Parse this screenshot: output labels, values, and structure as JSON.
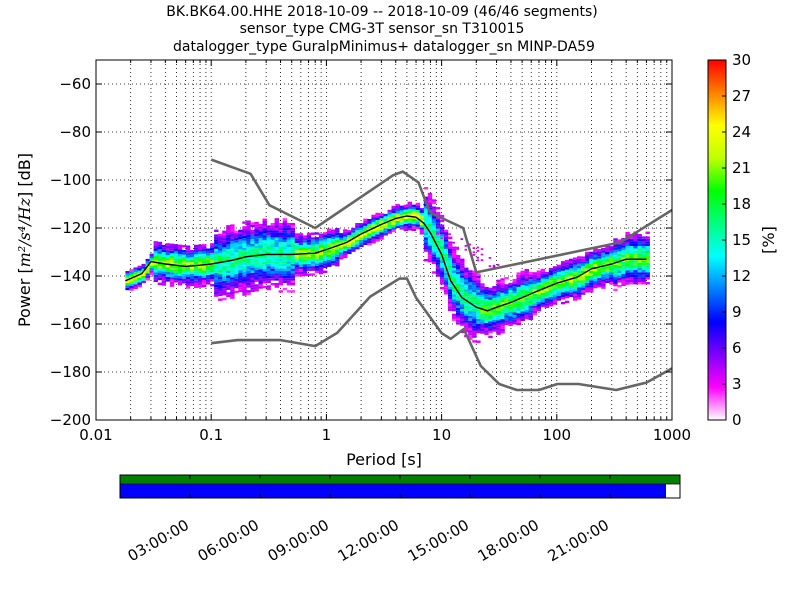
{
  "chart_data": {
    "type": "heatmap",
    "title_lines": [
      "BK.BK64.00.HHE   2018-10-09 -- 2018-10-09  (46/46 segments)",
      "sensor_type CMG-3T sensor_sn T310015",
      "datalogger_type GuralpMinimus+ datalogger_sn MINP-DA59"
    ],
    "xlabel": "Period [s]",
    "ylabel_prefix": "Power [",
    "ylabel_unit": "m²/s⁴/Hz",
    "ylabel_suffix": "] [dB]",
    "x_scale": "log",
    "xlim": [
      0.01,
      1000
    ],
    "ylim": [
      -200,
      -50
    ],
    "x_tick_labels": [
      "0.01",
      "0.1",
      "1",
      "10",
      "100",
      "1000"
    ],
    "x_tick_values": [
      0.01,
      0.1,
      1,
      10,
      100,
      1000
    ],
    "y_tick_values": [
      -60,
      -80,
      -100,
      -120,
      -140,
      -160,
      -180,
      -200
    ],
    "y_tick_labels": [
      "−60",
      "−80",
      "−100",
      "−120",
      "−140",
      "−160",
      "−180",
      "−200"
    ],
    "grid": "dotted, vertical lines at minor log ticks",
    "colorbar": {
      "label": "[%]",
      "range": [
        0,
        30
      ],
      "tick_values": [
        0,
        3,
        6,
        9,
        12,
        15,
        18,
        21,
        24,
        27,
        30
      ],
      "tick_labels": [
        "0",
        "3",
        "6",
        "9",
        "12",
        "15",
        "18",
        "21",
        "24",
        "27",
        "30"
      ],
      "colors": [
        "#ffffff",
        "#ff00ff",
        "#7f00ff",
        "#0000ff",
        "#0080ff",
        "#00ffff",
        "#00ff80",
        "#00ff00",
        "#c0ff00",
        "#ffff00",
        "#ff8000",
        "#ff0000"
      ]
    },
    "series": [
      {
        "name": "",
        "role": "NHNM",
        "color": "#666666",
        "x": [
          0.1,
          0.22,
          0.32,
          0.8,
          3.8,
          4.6,
          6.3,
          7.9,
          15.4,
          20,
          354.8,
          1000
        ],
        "y": [
          -91.5,
          -97.4,
          -110.5,
          -120,
          -98,
          -96.5,
          -101,
          -113.5,
          -120,
          -138.5,
          -126,
          -112.5
        ]
      },
      {
        "name": "",
        "role": "NLNM",
        "color": "#666666",
        "x": [
          0.1,
          0.17,
          0.4,
          0.8,
          1.24,
          2.4,
          4.3,
          5,
          6,
          10,
          12,
          15.6,
          21.9,
          31.6,
          45,
          70,
          101,
          154,
          328,
          600,
          1000
        ],
        "y": [
          -168,
          -166.7,
          -166.7,
          -169.2,
          -163.7,
          -148.6,
          -141.1,
          -141.1,
          -149,
          -163.8,
          -166.2,
          -162.1,
          -177.5,
          -185,
          -187.5,
          -187.5,
          -185,
          -185,
          -187.5,
          -184.4,
          -178.5
        ]
      },
      {
        "name": "",
        "role": "mode",
        "color": "#000000",
        "x": [
          0.018,
          0.025,
          0.03,
          0.04,
          0.06,
          0.08,
          0.1,
          0.15,
          0.2,
          0.3,
          0.5,
          0.8,
          1,
          1.5,
          2,
          3,
          4,
          5,
          6,
          7,
          8,
          10,
          12,
          15,
          20,
          25,
          30,
          40,
          50,
          70,
          100,
          150,
          200,
          300,
          400,
          600
        ],
        "y": [
          -142,
          -139,
          -134,
          -135,
          -136,
          -135.5,
          -135,
          -133.5,
          -132,
          -131,
          -131,
          -130.5,
          -129,
          -126,
          -122.5,
          -118.5,
          -116,
          -115,
          -115.5,
          -118,
          -122,
          -131,
          -142,
          -149,
          -153,
          -154.5,
          -153,
          -151,
          -149,
          -146,
          -143,
          -140.5,
          -137,
          -135,
          -133,
          -133
        ]
      }
    ],
    "time_bar": {
      "tick_labels": [
        "03:00:00",
        "06:00:00",
        "09:00:00",
        "12:00:00",
        "15:00:00",
        "18:00:00",
        "21:00:00"
      ],
      "tick_hours": [
        3,
        6,
        9,
        12,
        15,
        18,
        21
      ],
      "range_hours": [
        0,
        24
      ],
      "coverage_end_hours": 23.4,
      "top_color": "#008000",
      "bottom_color": "#0000ff"
    }
  }
}
